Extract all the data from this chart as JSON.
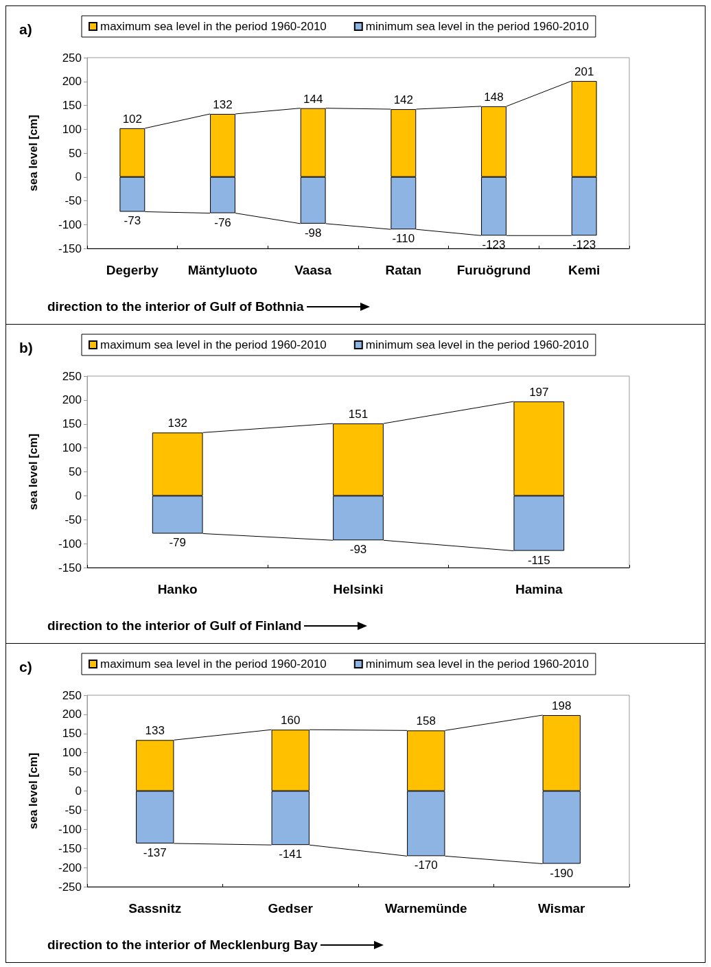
{
  "chart_data": [
    {
      "type": "bar",
      "title": "a)",
      "ylabel": "sea level [cm]",
      "categories": [
        "Degerby",
        "Mäntyluoto",
        "Vaasa",
        "Ratan",
        "Furuögrund",
        "Kemi"
      ],
      "series": [
        {
          "name": "maximum sea level in the period 1960-2010",
          "color": "#ffc000",
          "values": [
            102,
            132,
            144,
            142,
            148,
            201
          ]
        },
        {
          "name": "minimum sea level in the period 1960-2010",
          "color": "#8db4e2",
          "values": [
            -73,
            -76,
            -98,
            -110,
            -123,
            -123
          ]
        }
      ],
      "stacked": true,
      "data_labels": true,
      "ylim": [
        -150,
        250
      ],
      "yticks": [
        -150,
        -100,
        -50,
        0,
        50,
        100,
        150,
        200,
        250
      ],
      "grid": false,
      "legend": "top",
      "annotations": [
        "direction to the interior of Gulf of Bothnia"
      ]
    },
    {
      "type": "bar",
      "title": "b)",
      "ylabel": "sea level [cm]",
      "categories": [
        "Hanko",
        "Helsinki",
        "Hamina"
      ],
      "series": [
        {
          "name": "maximum sea level in the period 1960-2010",
          "color": "#ffc000",
          "values": [
            132,
            151,
            197
          ]
        },
        {
          "name": "minimum sea level in the period 1960-2010",
          "color": "#8db4e2",
          "values": [
            -79,
            -93,
            -115
          ]
        }
      ],
      "stacked": true,
      "data_labels": true,
      "ylim": [
        -150,
        250
      ],
      "yticks": [
        -150,
        -100,
        -50,
        0,
        50,
        100,
        150,
        200,
        250
      ],
      "grid": false,
      "legend": "top",
      "annotations": [
        "direction to the interior of Gulf of Finland"
      ]
    },
    {
      "type": "bar",
      "title": "c)",
      "ylabel": "sea level [cm]",
      "categories": [
        "Sassnitz",
        "Gedser",
        "Warnemünde",
        "Wismar"
      ],
      "series": [
        {
          "name": "maximum sea level in the period 1960-2010",
          "color": "#ffc000",
          "values": [
            133,
            160,
            158,
            198
          ]
        },
        {
          "name": "minimum sea level in the period 1960-2010",
          "color": "#8db4e2",
          "values": [
            -137,
            -141,
            -170,
            -190
          ]
        }
      ],
      "stacked": true,
      "data_labels": true,
      "ylim": [
        -250,
        250
      ],
      "yticks": [
        -250,
        -200,
        -150,
        -100,
        -50,
        0,
        50,
        100,
        150,
        200,
        250
      ],
      "grid": false,
      "legend": "top",
      "annotations": [
        "direction to the interior of Mecklenburg Bay"
      ]
    }
  ]
}
